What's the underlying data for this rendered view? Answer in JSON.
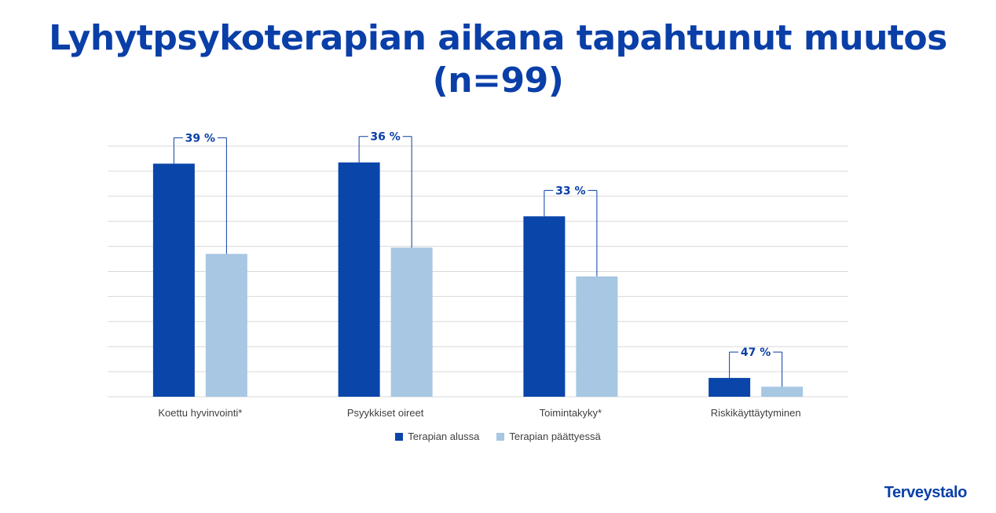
{
  "page_title": {
    "line1": "Lyhytpsykoterapian aikana tapahtunut muutos",
    "line2": "(n=99)"
  },
  "brand": "Terveystalo",
  "colors": {
    "series_start": "#0a45aa",
    "series_end": "#a7c7e2",
    "title": "#0a3fa8",
    "grid": "#d9d9d9"
  },
  "chart_data": {
    "type": "bar",
    "categories": [
      "Koettu hyvinvointi*",
      "Psyykkiset oireet",
      "Toimintakyky*",
      "Riskikäyttäytyminen"
    ],
    "series": [
      {
        "name": "Terapian alussa",
        "values": [
          93,
          93.5,
          72,
          7.5
        ]
      },
      {
        "name": "Terapian päättyessä",
        "values": [
          57,
          59.5,
          48,
          4
        ]
      }
    ],
    "annotations": [
      "39 %",
      "36 %",
      "33 %",
      "47 %"
    ],
    "ylim": [
      0,
      100
    ],
    "grid": true,
    "legend": "bottom",
    "xlabel": "",
    "ylabel": ""
  }
}
